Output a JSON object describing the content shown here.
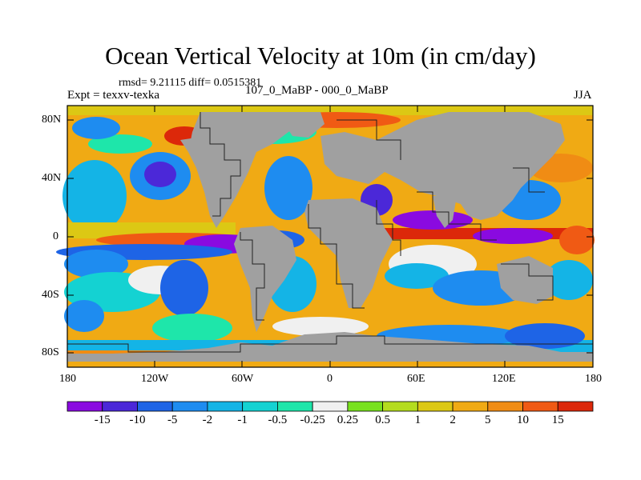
{
  "title": "Ocean Vertical Velocity at 10m (in cm/day)",
  "stats": "rmsd= 9.21115 diff= 0.0515381",
  "experiment": "Expt = texxv-texka",
  "comparison": "107_0_MaBP - 000_0_MaBP",
  "season": "JJA",
  "lat_labels": [
    "80N",
    "40N",
    "0",
    "40S",
    "80S"
  ],
  "lon_labels": [
    "180",
    "120W",
    "60W",
    "0",
    "60E",
    "120E",
    "180"
  ],
  "colorbar": {
    "labels": [
      "-15",
      "-10",
      "-5",
      "-2",
      "-1",
      "-0.5",
      "-0.25",
      "0.25",
      "0.5",
      "1",
      "2",
      "5",
      "10",
      "15"
    ],
    "colors": [
      "#8a0ae0",
      "#4b28d8",
      "#1e64e6",
      "#1e8cf0",
      "#14b4e6",
      "#14d2d2",
      "#1ee6aa",
      "#f0f0f0",
      "#78e11e",
      "#b4dc1e",
      "#dcc814",
      "#f0aa14",
      "#f08c14",
      "#f05a14",
      "#dc280a"
    ]
  },
  "colors": {
    "land": "#a0a0a0",
    "coast": "#222222"
  }
}
